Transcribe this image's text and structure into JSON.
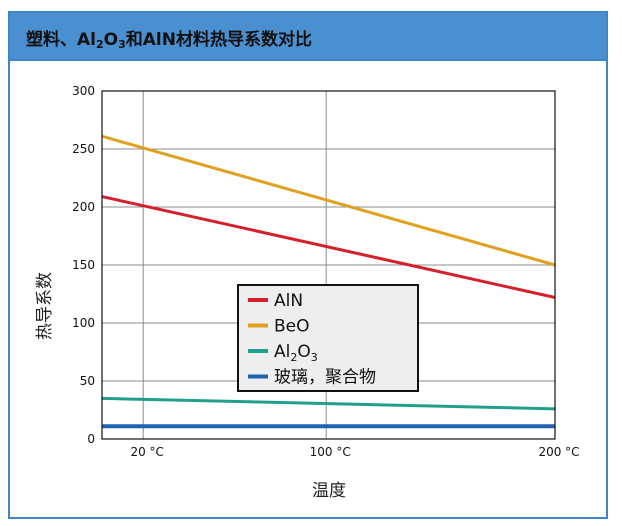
{
  "header": {
    "title_pre": "塑料、Al",
    "title_sub1": "2",
    "title_mid": "O",
    "title_sub2": "3",
    "title_post": "和AlN材料热导系数对比"
  },
  "colors": {
    "header_bg": "#4a8fd0",
    "frame": "#3f86c8",
    "plot_bg": "#ffffff",
    "legend_bg": "#eeeeee"
  },
  "chart_data": {
    "type": "line",
    "xlabel": "温度",
    "ylabel": "热导系数",
    "x_ticks": [
      {
        "value": 20,
        "label": "20 °C"
      },
      {
        "value": 100,
        "label": "100 °C"
      },
      {
        "value": 200,
        "label": "200 °C"
      }
    ],
    "xlim": [
      2,
      200
    ],
    "ylim": [
      0,
      300
    ],
    "y_ticks": [
      0,
      50,
      100,
      150,
      200,
      250,
      300
    ],
    "grid": true,
    "legend_position": "center-bottom",
    "series": [
      {
        "name": "AlN",
        "name_main": "AlN",
        "name_sub": "",
        "name_post": "",
        "color": "#d4202a",
        "x": [
          2,
          200
        ],
        "values": [
          209,
          122
        ]
      },
      {
        "name": "BeO",
        "name_main": "BeO",
        "name_sub": "",
        "name_post": "",
        "color": "#e0a020",
        "x": [
          2,
          200
        ],
        "values": [
          261,
          150
        ]
      },
      {
        "name": "Al2O3",
        "name_main": "Al",
        "name_sub": "2",
        "name_post": "O",
        "name_sub2": "3",
        "color": "#20a08c",
        "x": [
          2,
          200
        ],
        "values": [
          35,
          26
        ]
      },
      {
        "name": "玻璃，聚合物",
        "name_main": "玻璃，聚合物",
        "name_sub": "",
        "name_post": "",
        "color": "#1f63b0",
        "x": [
          2,
          200
        ],
        "values": [
          11,
          11
        ]
      }
    ]
  }
}
